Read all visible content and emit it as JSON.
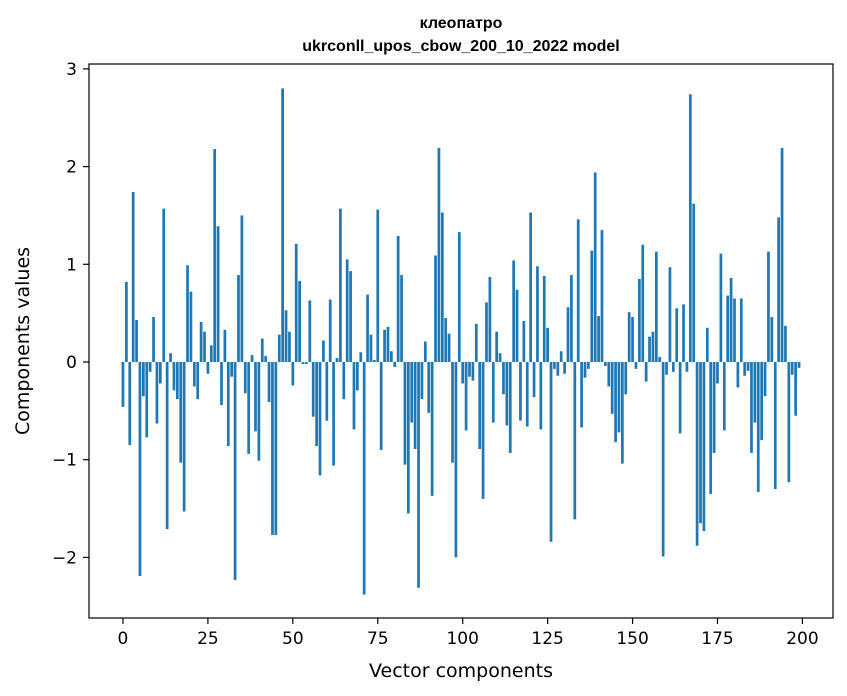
{
  "chart_data": {
    "type": "bar",
    "title_line1": "клеопатро",
    "title_line2": "ukrconll_upos_cbow_200_10_2022 model",
    "xlabel": "Vector components",
    "ylabel": "Components values",
    "xlim": [
      -10,
      209
    ],
    "ylim": [
      -2.62,
      3.05
    ],
    "xticks": [
      0,
      25,
      50,
      75,
      100,
      125,
      150,
      175,
      200
    ],
    "yticks": [
      -2,
      -1,
      0,
      1,
      2,
      3
    ],
    "ytick_labels": [
      "−2",
      "−1",
      "0",
      "1",
      "2",
      "3"
    ],
    "bar_color": "#1f77b4",
    "grid": false,
    "values": [
      -0.46,
      0.82,
      -0.85,
      1.74,
      0.43,
      -2.19,
      -0.35,
      -0.77,
      -0.1,
      0.46,
      -0.63,
      -0.22,
      1.57,
      -1.71,
      0.09,
      -0.29,
      -0.38,
      -1.03,
      -1.53,
      0.99,
      0.72,
      -0.25,
      -0.38,
      0.41,
      0.31,
      -0.12,
      0.17,
      2.18,
      1.39,
      -0.44,
      0.33,
      -0.86,
      -0.15,
      -2.23,
      0.89,
      1.5,
      -0.32,
      -0.94,
      0.07,
      -0.71,
      -1.01,
      0.24,
      0.06,
      -0.41,
      -1.77,
      -1.77,
      0.28,
      2.8,
      0.53,
      0.31,
      -0.24,
      1.21,
      0.83,
      -0.02,
      -0.02,
      0.63,
      -0.56,
      -0.86,
      -1.16,
      0.22,
      -0.6,
      0.64,
      -1.06,
      0.04,
      1.57,
      -0.38,
      1.05,
      0.93,
      -0.69,
      -0.29,
      0.1,
      -2.38,
      0.69,
      0.28,
      0.02,
      1.56,
      -0.9,
      0.33,
      0.36,
      0.11,
      -0.05,
      1.29,
      0.89,
      -1.05,
      -1.55,
      -0.62,
      -0.89,
      -2.31,
      -0.38,
      0.21,
      -0.52,
      -1.37,
      1.09,
      2.19,
      1.53,
      0.45,
      0.29,
      -1.03,
      -2.0,
      1.33,
      -0.22,
      -0.7,
      -0.15,
      -0.19,
      0.39,
      -0.89,
      -1.4,
      0.61,
      0.87,
      -0.62,
      0.31,
      0.09,
      -0.33,
      -0.65,
      -0.93,
      1.04,
      0.74,
      -0.6,
      0.42,
      -0.66,
      1.53,
      -0.36,
      0.98,
      -0.69,
      0.88,
      0.35,
      -1.84,
      -0.07,
      -0.14,
      0.11,
      -0.12,
      0.56,
      0.89,
      -1.61,
      1.46,
      -0.67,
      -0.16,
      -0.07,
      1.14,
      1.94,
      0.47,
      1.35,
      -0.04,
      -0.25,
      -0.53,
      -0.82,
      -0.72,
      -1.04,
      -0.33,
      0.51,
      0.46,
      -0.07,
      0.85,
      1.2,
      -0.2,
      0.26,
      0.31,
      1.13,
      0.05,
      -1.99,
      -0.13,
      0.97,
      -0.1,
      0.55,
      -0.73,
      0.59,
      -0.1,
      2.74,
      1.62,
      -1.88,
      -1.65,
      -1.73,
      0.35,
      -1.35,
      -0.93,
      -0.22,
      1.11,
      -0.7,
      0.68,
      0.86,
      0.65,
      -0.26,
      0.65,
      -0.14,
      -0.09,
      -0.93,
      -0.62,
      -1.33,
      -0.8,
      -0.35,
      1.13,
      0.46,
      -1.3,
      1.48,
      2.19,
      0.37,
      -1.23,
      -0.13,
      -0.55,
      -0.06
    ]
  }
}
